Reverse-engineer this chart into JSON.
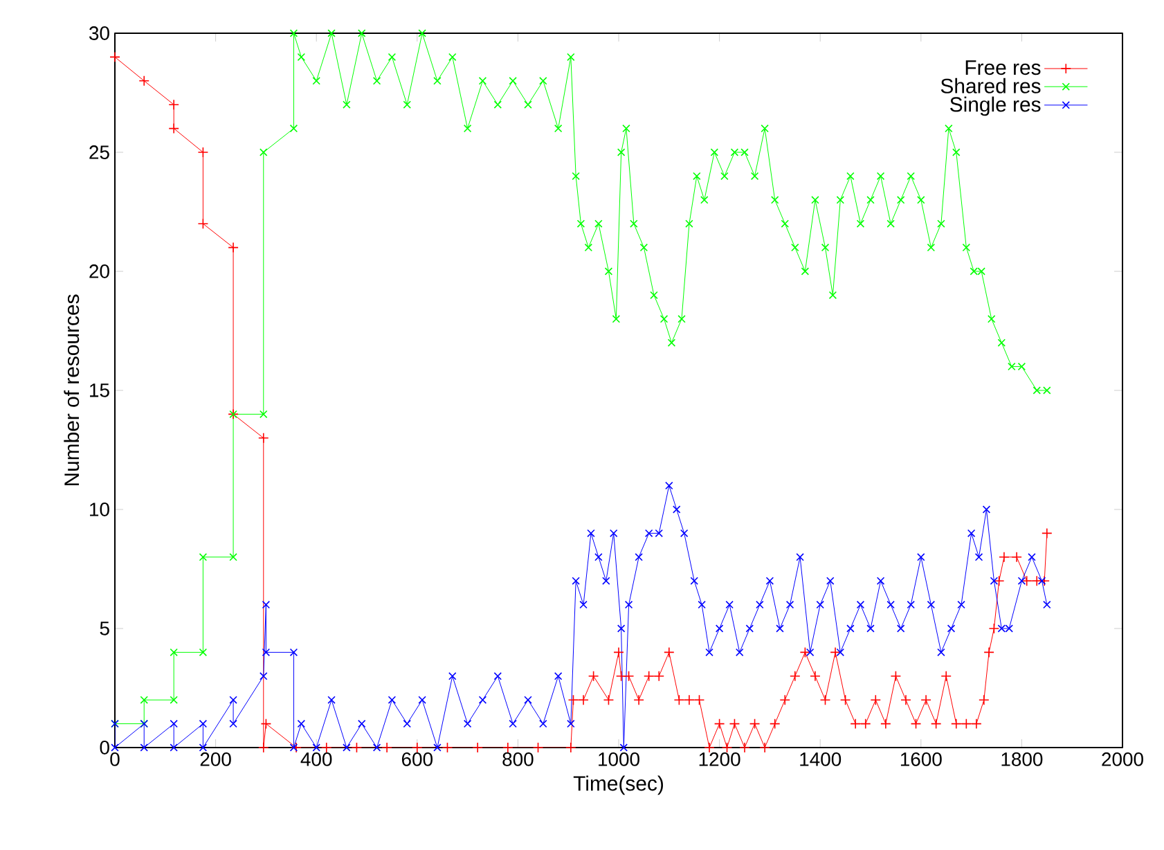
{
  "chart_data": {
    "type": "line",
    "xlabel": "Time(sec)",
    "ylabel": "Number of resources",
    "xlim": [
      0,
      2000
    ],
    "ylim": [
      0,
      30
    ],
    "xticks": [
      0,
      200,
      400,
      600,
      800,
      1000,
      1200,
      1400,
      1600,
      1800,
      2000
    ],
    "yticks": [
      0,
      5,
      10,
      15,
      20,
      25,
      30
    ],
    "legend": "top right",
    "line_style": "solid",
    "series": [
      {
        "name": "Free res",
        "color": "#ff0000",
        "marker": "plus",
        "x": [
          0,
          58,
          117,
          117,
          175,
          175,
          235,
          235,
          295,
          295,
          300,
          360,
          420,
          480,
          540,
          600,
          660,
          720,
          780,
          840,
          905,
          910,
          930,
          950,
          980,
          1000,
          1005,
          1020,
          1040,
          1060,
          1080,
          1100,
          1120,
          1140,
          1160,
          1180,
          1200,
          1215,
          1230,
          1250,
          1270,
          1290,
          1310,
          1330,
          1350,
          1370,
          1390,
          1410,
          1430,
          1450,
          1470,
          1490,
          1510,
          1530,
          1550,
          1570,
          1590,
          1610,
          1630,
          1650,
          1670,
          1690,
          1710,
          1725,
          1735,
          1745,
          1755,
          1765,
          1790,
          1810,
          1830,
          1845,
          1850
        ],
        "values": [
          29,
          28,
          27,
          26,
          25,
          22,
          21,
          14,
          13,
          0,
          1,
          0,
          0,
          0,
          0,
          0,
          0,
          0,
          0,
          0,
          0,
          2,
          2,
          3,
          2,
          4,
          3,
          3,
          2,
          3,
          3,
          4,
          2,
          2,
          2,
          0,
          1,
          0,
          1,
          0,
          1,
          0,
          1,
          2,
          3,
          4,
          3,
          2,
          4,
          2,
          1,
          1,
          2,
          1,
          3,
          2,
          1,
          2,
          1,
          3,
          1,
          1,
          1,
          2,
          4,
          5,
          7,
          8,
          8,
          7,
          7,
          7,
          9
        ]
      },
      {
        "name": "Shared res",
        "color": "#00ff00",
        "marker": "cross",
        "x": [
          0,
          58,
          58,
          117,
          117,
          175,
          175,
          235,
          235,
          295,
          295,
          355,
          355,
          370,
          400,
          430,
          460,
          490,
          520,
          550,
          580,
          610,
          640,
          670,
          700,
          730,
          760,
          790,
          820,
          850,
          880,
          905,
          915,
          925,
          940,
          960,
          980,
          995,
          1005,
          1015,
          1030,
          1050,
          1070,
          1090,
          1105,
          1125,
          1140,
          1155,
          1170,
          1190,
          1210,
          1230,
          1250,
          1270,
          1290,
          1310,
          1330,
          1350,
          1370,
          1390,
          1410,
          1425,
          1440,
          1460,
          1480,
          1500,
          1520,
          1540,
          1560,
          1580,
          1600,
          1620,
          1640,
          1655,
          1670,
          1690,
          1705,
          1720,
          1740,
          1760,
          1780,
          1800,
          1830,
          1850
        ],
        "values": [
          1,
          1,
          2,
          2,
          4,
          4,
          8,
          8,
          14,
          14,
          25,
          26,
          30,
          29,
          28,
          30,
          27,
          30,
          28,
          29,
          27,
          30,
          28,
          29,
          26,
          28,
          27,
          28,
          27,
          28,
          26,
          29,
          24,
          22,
          21,
          22,
          20,
          18,
          25,
          26,
          22,
          21,
          19,
          18,
          17,
          18,
          22,
          24,
          23,
          25,
          24,
          25,
          25,
          24,
          26,
          23,
          22,
          21,
          20,
          23,
          21,
          19,
          23,
          24,
          22,
          23,
          24,
          22,
          23,
          24,
          23,
          21,
          22,
          26,
          25,
          21,
          20,
          20,
          18,
          17,
          16,
          16,
          15,
          15
        ]
      },
      {
        "name": "Single res",
        "color": "#0000ff",
        "marker": "cross",
        "x": [
          0,
          0,
          58,
          58,
          117,
          117,
          175,
          175,
          235,
          235,
          295,
          300,
          300,
          355,
          355,
          370,
          400,
          430,
          460,
          490,
          520,
          550,
          580,
          610,
          640,
          670,
          700,
          730,
          760,
          790,
          820,
          850,
          880,
          905,
          915,
          930,
          945,
          960,
          975,
          990,
          1005,
          1010,
          1020,
          1040,
          1060,
          1080,
          1100,
          1115,
          1130,
          1150,
          1165,
          1180,
          1200,
          1220,
          1240,
          1260,
          1280,
          1300,
          1320,
          1340,
          1360,
          1380,
          1400,
          1420,
          1440,
          1460,
          1480,
          1500,
          1520,
          1540,
          1560,
          1580,
          1600,
          1620,
          1640,
          1660,
          1680,
          1700,
          1715,
          1730,
          1745,
          1760,
          1775,
          1800,
          1820,
          1840,
          1850
        ],
        "values": [
          1,
          0,
          1,
          0,
          1,
          0,
          1,
          0,
          2,
          1,
          3,
          6,
          4,
          4,
          0,
          1,
          0,
          2,
          0,
          1,
          0,
          2,
          1,
          2,
          0,
          3,
          1,
          2,
          3,
          1,
          2,
          1,
          3,
          1,
          7,
          6,
          9,
          8,
          7,
          9,
          5,
          0,
          6,
          8,
          9,
          9,
          11,
          10,
          9,
          7,
          6,
          4,
          5,
          6,
          4,
          5,
          6,
          7,
          5,
          6,
          8,
          4,
          6,
          7,
          4,
          5,
          6,
          5,
          7,
          6,
          5,
          6,
          8,
          6,
          4,
          5,
          6,
          9,
          8,
          10,
          7,
          5,
          5,
          7,
          8,
          7,
          6
        ]
      }
    ]
  }
}
